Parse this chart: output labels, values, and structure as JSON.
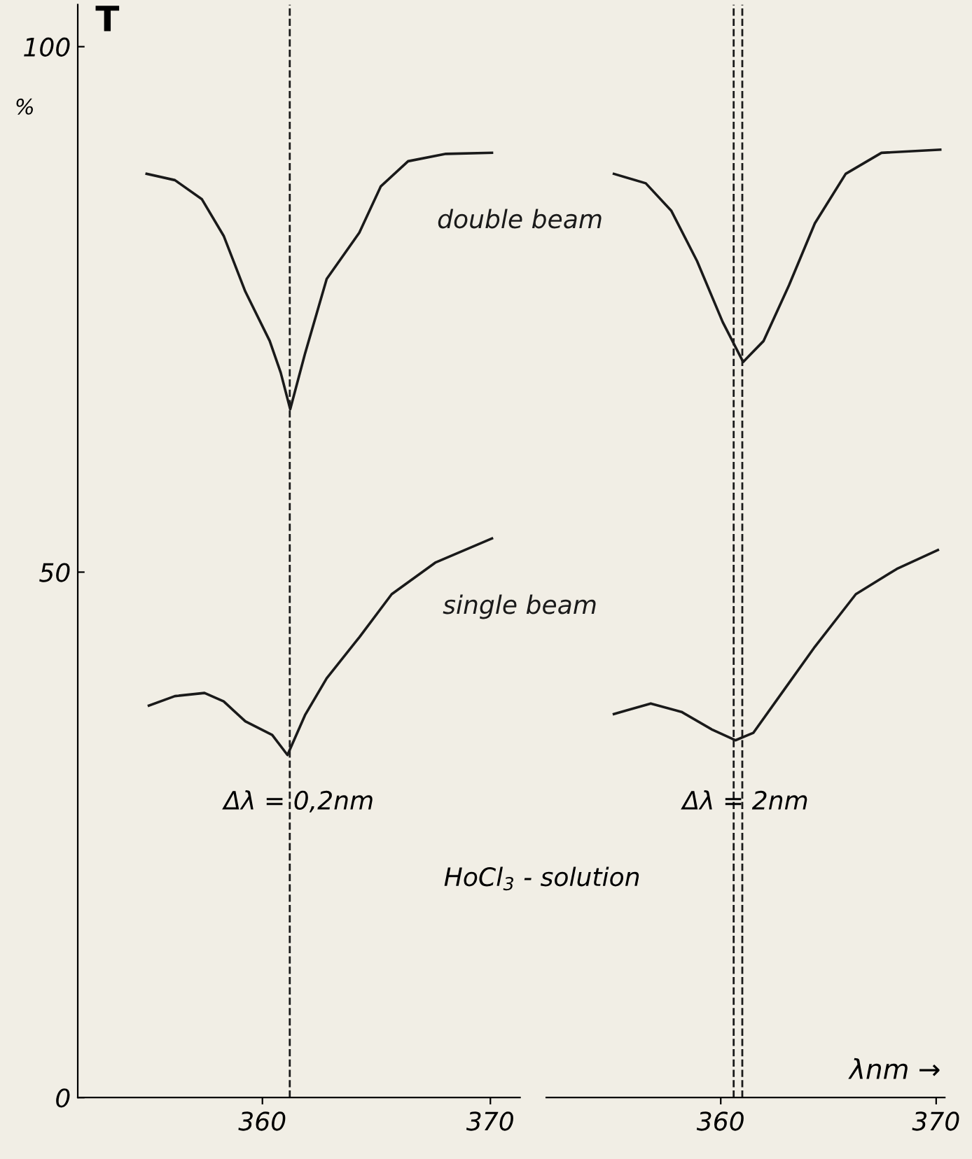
{
  "chart_data": [
    {
      "type": "line",
      "ylabel": "T",
      "xlim": [
        351.9,
        371.3
      ],
      "ylim": [
        0,
        104
      ],
      "xticks": [
        360,
        370
      ],
      "yticks": [
        0,
        50,
        100
      ],
      "grid": false,
      "legend": false,
      "marker": "none",
      "line_style": "solid",
      "series": [
        {
          "name": "double beam",
          "color": "#1a1a1a",
          "x": [
            354.92,
            356.16,
            357.34,
            358.3,
            359.25,
            360.32,
            360.8,
            361.22,
            361.87,
            362.82,
            364.25,
            365.19,
            366.39,
            368.05,
            370.07
          ],
          "values": [
            87.9,
            87.3,
            85.5,
            82.0,
            76.7,
            72.0,
            69.0,
            65.5,
            70.8,
            77.9,
            82.3,
            86.7,
            89.1,
            89.8,
            89.9
          ]
        },
        {
          "name": "single beam",
          "color": "#1a1a1a",
          "x": [
            355.02,
            356.16,
            357.46,
            358.3,
            359.25,
            360.43,
            361.1,
            361.87,
            362.82,
            364.25,
            365.67,
            367.58,
            370.07
          ],
          "values": [
            37.3,
            38.2,
            38.5,
            37.7,
            35.8,
            34.5,
            32.6,
            36.4,
            39.9,
            43.8,
            47.9,
            50.9,
            53.2
          ]
        }
      ],
      "ref_lines": [
        {
          "axis": "x",
          "value": 361.2,
          "line_style": "dashed",
          "color": "#1a1a1a"
        }
      ],
      "annotations": [
        "%",
        "Δλ = 0,2nm",
        "HoCl$_{3}$ - solution"
      ]
    },
    {
      "type": "line",
      "xlabel": "λnm →",
      "xlim": [
        351.9,
        370.4
      ],
      "ylim": [
        0,
        104
      ],
      "xticks": [
        360,
        370
      ],
      "tick_labels": "x",
      "grid": false,
      "legend": false,
      "marker": "none",
      "line_style": "solid",
      "series": [
        {
          "color": "#1a1a1a",
          "x": [
            355.04,
            356.52,
            357.7,
            358.9,
            360.09,
            361.04,
            361.99,
            363.17,
            364.37,
            365.8,
            367.46,
            370.19
          ],
          "values": [
            87.9,
            87.0,
            84.4,
            79.6,
            73.8,
            70.0,
            72.0,
            77.3,
            83.2,
            87.9,
            89.9,
            90.2
          ]
        },
        {
          "color": "#1a1a1a",
          "x": [
            355.04,
            356.75,
            358.18,
            359.61,
            360.68,
            361.51,
            362.94,
            364.37,
            366.27,
            368.17,
            370.08
          ],
          "values": [
            36.5,
            37.5,
            36.7,
            35.0,
            34.0,
            34.7,
            38.8,
            42.9,
            47.9,
            50.3,
            52.1
          ]
        }
      ],
      "ref_lines": [
        {
          "axis": "x",
          "value": 361.0,
          "line_style": "dashed",
          "color": "#1a1a1a"
        },
        {
          "axis": "x",
          "value": 360.6,
          "line_style": "dashed",
          "color": "#1a1a1a"
        }
      ],
      "annotations": [
        "Δλ = 2nm"
      ]
    }
  ]
}
